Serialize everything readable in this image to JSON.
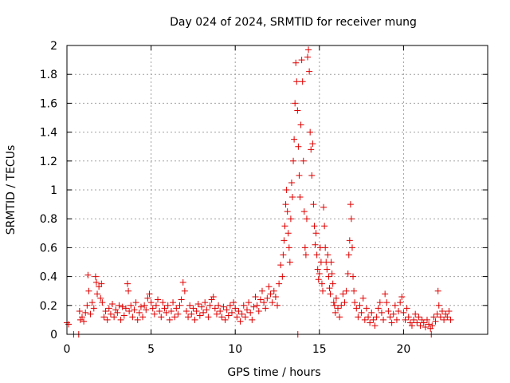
{
  "chart_data": {
    "type": "scatter",
    "title": "Day 024 of 2024, SRMTID for receiver mung",
    "xlabel": "GPS time / hours",
    "ylabel": "SRMTID / TECUs",
    "xlim": [
      0,
      25
    ],
    "ylim": [
      0,
      2
    ],
    "xticks": [
      0,
      5,
      10,
      15,
      20
    ],
    "xtick_labels": [
      "0",
      "5",
      "10",
      "15",
      "20"
    ],
    "yticks": [
      0,
      0.2,
      0.4,
      0.6,
      0.8,
      1.0,
      1.2,
      1.4,
      1.6,
      1.8,
      2.0
    ],
    "ytick_labels": [
      "0",
      "0.2",
      "0.4",
      "0.6",
      "0.8",
      "1",
      "1.2",
      "1.4",
      "1.6",
      "1.8",
      "2"
    ],
    "grid": true,
    "marker": "+",
    "color": "#e00000",
    "series": [
      {
        "name": "SRMTID",
        "points": [
          [
            0.0,
            0.08
          ],
          [
            0.1,
            0.07
          ],
          [
            0.4,
            0.0
          ],
          [
            0.7,
            0.0
          ],
          [
            0.75,
            0.16
          ],
          [
            0.8,
            0.1
          ],
          [
            0.9,
            0.12
          ],
          [
            1.0,
            0.09
          ],
          [
            1.1,
            0.15
          ],
          [
            1.2,
            0.2
          ],
          [
            1.25,
            0.41
          ],
          [
            1.3,
            0.3
          ],
          [
            1.4,
            0.14
          ],
          [
            1.5,
            0.22
          ],
          [
            1.6,
            0.18
          ],
          [
            1.7,
            0.4
          ],
          [
            1.75,
            0.36
          ],
          [
            1.8,
            0.28
          ],
          [
            1.9,
            0.33
          ],
          [
            2.0,
            0.25
          ],
          [
            2.05,
            0.35
          ],
          [
            2.1,
            0.22
          ],
          [
            2.2,
            0.12
          ],
          [
            2.3,
            0.16
          ],
          [
            2.4,
            0.1
          ],
          [
            2.5,
            0.18
          ],
          [
            2.6,
            0.14
          ],
          [
            2.7,
            0.21
          ],
          [
            2.8,
            0.12
          ],
          [
            2.9,
            0.17
          ],
          [
            3.0,
            0.15
          ],
          [
            3.1,
            0.2
          ],
          [
            3.2,
            0.1
          ],
          [
            3.3,
            0.19
          ],
          [
            3.4,
            0.13
          ],
          [
            3.5,
            0.18
          ],
          [
            3.6,
            0.35
          ],
          [
            3.65,
            0.3
          ],
          [
            3.7,
            0.16
          ],
          [
            3.8,
            0.2
          ],
          [
            3.9,
            0.12
          ],
          [
            4.0,
            0.17
          ],
          [
            4.1,
            0.22
          ],
          [
            4.2,
            0.1
          ],
          [
            4.3,
            0.15
          ],
          [
            4.4,
            0.19
          ],
          [
            4.5,
            0.12
          ],
          [
            4.6,
            0.2
          ],
          [
            4.7,
            0.17
          ],
          [
            4.8,
            0.25
          ],
          [
            4.9,
            0.28
          ],
          [
            5.0,
            0.22
          ],
          [
            5.1,
            0.18
          ],
          [
            5.2,
            0.14
          ],
          [
            5.3,
            0.2
          ],
          [
            5.4,
            0.24
          ],
          [
            5.5,
            0.16
          ],
          [
            5.6,
            0.12
          ],
          [
            5.7,
            0.22
          ],
          [
            5.8,
            0.18
          ],
          [
            5.9,
            0.15
          ],
          [
            6.0,
            0.2
          ],
          [
            6.1,
            0.1
          ],
          [
            6.2,
            0.16
          ],
          [
            6.3,
            0.22
          ],
          [
            6.4,
            0.12
          ],
          [
            6.5,
            0.18
          ],
          [
            6.6,
            0.14
          ],
          [
            6.7,
            0.2
          ],
          [
            6.8,
            0.24
          ],
          [
            6.9,
            0.36
          ],
          [
            7.0,
            0.3
          ],
          [
            7.1,
            0.16
          ],
          [
            7.2,
            0.12
          ],
          [
            7.3,
            0.2
          ],
          [
            7.4,
            0.14
          ],
          [
            7.5,
            0.18
          ],
          [
            7.6,
            0.1
          ],
          [
            7.7,
            0.16
          ],
          [
            7.8,
            0.21
          ],
          [
            7.9,
            0.13
          ],
          [
            8.0,
            0.19
          ],
          [
            8.1,
            0.15
          ],
          [
            8.2,
            0.22
          ],
          [
            8.3,
            0.17
          ],
          [
            8.4,
            0.12
          ],
          [
            8.5,
            0.2
          ],
          [
            8.6,
            0.24
          ],
          [
            8.7,
            0.26
          ],
          [
            8.8,
            0.18
          ],
          [
            8.9,
            0.14
          ],
          [
            9.0,
            0.2
          ],
          [
            9.1,
            0.16
          ],
          [
            9.2,
            0.12
          ],
          [
            9.3,
            0.19
          ],
          [
            9.4,
            0.1
          ],
          [
            9.5,
            0.17
          ],
          [
            9.6,
            0.13
          ],
          [
            9.7,
            0.2
          ],
          [
            9.8,
            0.15
          ],
          [
            9.9,
            0.22
          ],
          [
            10.0,
            0.18
          ],
          [
            10.1,
            0.12
          ],
          [
            10.2,
            0.16
          ],
          [
            10.3,
            0.09
          ],
          [
            10.4,
            0.14
          ],
          [
            10.5,
            0.2
          ],
          [
            10.6,
            0.12
          ],
          [
            10.7,
            0.17
          ],
          [
            10.8,
            0.22
          ],
          [
            10.9,
            0.15
          ],
          [
            11.0,
            0.1
          ],
          [
            11.1,
            0.19
          ],
          [
            11.2,
            0.26
          ],
          [
            11.3,
            0.2
          ],
          [
            11.4,
            0.16
          ],
          [
            11.5,
            0.24
          ],
          [
            11.6,
            0.3
          ],
          [
            11.7,
            0.22
          ],
          [
            11.8,
            0.18
          ],
          [
            11.9,
            0.25
          ],
          [
            12.0,
            0.33
          ],
          [
            12.1,
            0.28
          ],
          [
            12.2,
            0.22
          ],
          [
            12.3,
            0.3
          ],
          [
            12.4,
            0.26
          ],
          [
            12.5,
            0.2
          ],
          [
            12.6,
            0.35
          ],
          [
            12.7,
            0.48
          ],
          [
            12.8,
            0.4
          ],
          [
            12.85,
            0.55
          ],
          [
            12.9,
            0.65
          ],
          [
            12.95,
            0.75
          ],
          [
            13.0,
            0.9
          ],
          [
            13.05,
            1.0
          ],
          [
            13.1,
            0.85
          ],
          [
            13.15,
            0.7
          ],
          [
            13.2,
            0.6
          ],
          [
            13.25,
            0.5
          ],
          [
            13.3,
            0.8
          ],
          [
            13.35,
            1.05
          ],
          [
            13.4,
            0.95
          ],
          [
            13.45,
            1.2
          ],
          [
            13.5,
            1.35
          ],
          [
            13.55,
            1.6
          ],
          [
            13.6,
            1.88
          ],
          [
            13.65,
            1.75
          ],
          [
            13.7,
            1.55
          ],
          [
            13.72,
            0.0
          ],
          [
            13.75,
            1.3
          ],
          [
            13.8,
            1.1
          ],
          [
            13.85,
            0.95
          ],
          [
            13.9,
            1.45
          ],
          [
            13.95,
            1.9
          ],
          [
            14.0,
            1.75
          ],
          [
            14.05,
            1.2
          ],
          [
            14.1,
            0.85
          ],
          [
            14.15,
            0.6
          ],
          [
            14.2,
            0.55
          ],
          [
            14.25,
            0.8
          ],
          [
            14.3,
            1.92
          ],
          [
            14.35,
            1.97
          ],
          [
            14.4,
            1.82
          ],
          [
            14.45,
            1.4
          ],
          [
            14.5,
            1.28
          ],
          [
            14.55,
            1.1
          ],
          [
            14.6,
            1.32
          ],
          [
            14.65,
            0.9
          ],
          [
            14.7,
            0.75
          ],
          [
            14.75,
            0.62
          ],
          [
            14.8,
            0.7
          ],
          [
            14.85,
            0.55
          ],
          [
            14.9,
            0.45
          ],
          [
            14.95,
            0.38
          ],
          [
            15.0,
            0.42
          ],
          [
            15.05,
            0.6
          ],
          [
            15.1,
            0.5
          ],
          [
            15.15,
            0.35
          ],
          [
            15.2,
            0.3
          ],
          [
            15.25,
            0.88
          ],
          [
            15.3,
            0.75
          ],
          [
            15.35,
            0.6
          ],
          [
            15.4,
            0.5
          ],
          [
            15.45,
            0.45
          ],
          [
            15.5,
            0.55
          ],
          [
            15.55,
            0.4
          ],
          [
            15.6,
            0.32
          ],
          [
            15.65,
            0.28
          ],
          [
            15.7,
            0.5
          ],
          [
            15.75,
            0.42
          ],
          [
            15.8,
            0.35
          ],
          [
            15.85,
            0.22
          ],
          [
            15.9,
            0.2
          ],
          [
            15.95,
            0.15
          ],
          [
            16.0,
            0.25
          ],
          [
            16.1,
            0.18
          ],
          [
            16.2,
            0.12
          ],
          [
            16.3,
            0.2
          ],
          [
            16.4,
            0.28
          ],
          [
            16.5,
            0.22
          ],
          [
            16.6,
            0.3
          ],
          [
            16.7,
            0.42
          ],
          [
            16.75,
            0.55
          ],
          [
            16.8,
            0.65
          ],
          [
            16.85,
            0.9
          ],
          [
            16.9,
            0.8
          ],
          [
            16.95,
            0.6
          ],
          [
            17.0,
            0.4
          ],
          [
            17.05,
            0.3
          ],
          [
            17.1,
            0.22
          ],
          [
            17.2,
            0.18
          ],
          [
            17.3,
            0.12
          ],
          [
            17.4,
            0.2
          ],
          [
            17.5,
            0.15
          ],
          [
            17.6,
            0.25
          ],
          [
            17.7,
            0.1
          ],
          [
            17.8,
            0.18
          ],
          [
            17.9,
            0.12
          ],
          [
            18.0,
            0.08
          ],
          [
            18.1,
            0.15
          ],
          [
            18.2,
            0.1
          ],
          [
            18.3,
            0.06
          ],
          [
            18.4,
            0.12
          ],
          [
            18.5,
            0.18
          ],
          [
            18.6,
            0.22
          ],
          [
            18.7,
            0.15
          ],
          [
            18.8,
            0.1
          ],
          [
            18.9,
            0.28
          ],
          [
            19.0,
            0.22
          ],
          [
            19.1,
            0.16
          ],
          [
            19.2,
            0.12
          ],
          [
            19.3,
            0.08
          ],
          [
            19.4,
            0.14
          ],
          [
            19.5,
            0.2
          ],
          [
            19.6,
            0.1
          ],
          [
            19.7,
            0.16
          ],
          [
            19.8,
            0.22
          ],
          [
            19.9,
            0.26
          ],
          [
            20.0,
            0.15
          ],
          [
            20.1,
            0.1
          ],
          [
            20.2,
            0.18
          ],
          [
            20.3,
            0.12
          ],
          [
            20.4,
            0.08
          ],
          [
            20.5,
            0.06
          ],
          [
            20.6,
            0.1
          ],
          [
            20.7,
            0.14
          ],
          [
            20.8,
            0.08
          ],
          [
            20.9,
            0.12
          ],
          [
            21.0,
            0.06
          ],
          [
            21.1,
            0.1
          ],
          [
            21.2,
            0.08
          ],
          [
            21.3,
            0.05
          ],
          [
            21.4,
            0.1
          ],
          [
            21.5,
            0.07
          ],
          [
            21.6,
            0.04
          ],
          [
            21.65,
            0.0
          ],
          [
            21.7,
            0.06
          ],
          [
            21.8,
            0.12
          ],
          [
            21.9,
            0.09
          ],
          [
            22.0,
            0.14
          ],
          [
            22.05,
            0.3
          ],
          [
            22.1,
            0.2
          ],
          [
            22.2,
            0.12
          ],
          [
            22.3,
            0.16
          ],
          [
            22.4,
            0.1
          ],
          [
            22.5,
            0.14
          ],
          [
            22.6,
            0.12
          ],
          [
            22.7,
            0.16
          ],
          [
            22.8,
            0.1
          ]
        ]
      }
    ]
  }
}
